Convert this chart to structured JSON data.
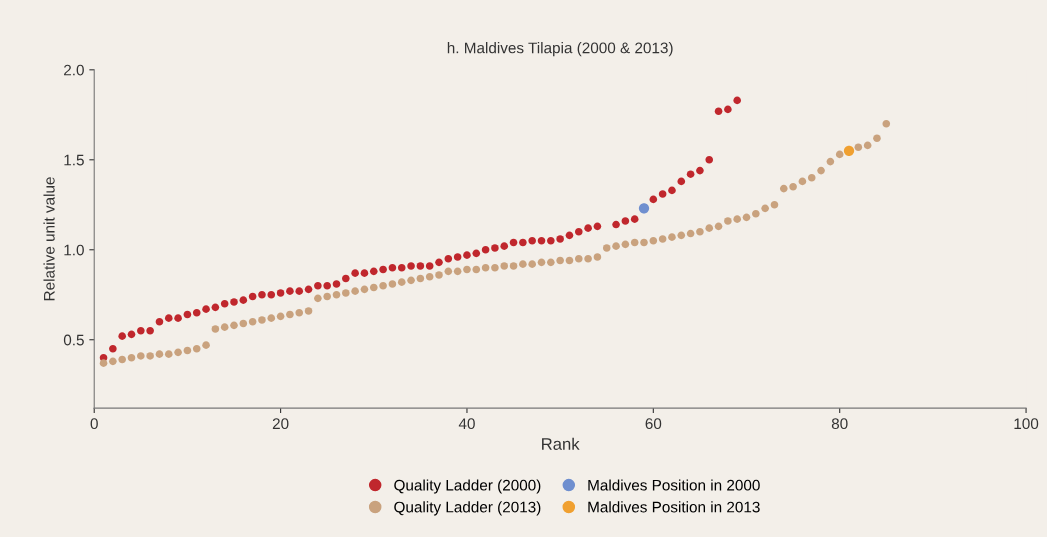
{
  "chart_data": {
    "type": "scatter",
    "title": "h. Maldives Tilapia (2000 & 2013)",
    "xlabel": "Rank",
    "ylabel": "Relative unit value",
    "xlim": [
      0,
      100
    ],
    "xticks": [
      0,
      20,
      40,
      60,
      80,
      100
    ],
    "ylim": [
      0.12,
      2.0
    ],
    "yticks": [
      {
        "value": 0.5,
        "label": "0.5"
      },
      {
        "value": 1.0,
        "label": "1.0"
      },
      {
        "value": 1.5,
        "label": "1.5"
      },
      {
        "value": 2.0,
        "label": "2.0"
      }
    ],
    "legend": "bottom",
    "marker": "circle",
    "grid": false,
    "series": [
      {
        "name": "Quality Ladder (2000)",
        "color": "#c0272d",
        "x": [
          1,
          2,
          3,
          4,
          5,
          6,
          7,
          8,
          9,
          10,
          11,
          12,
          13,
          14,
          15,
          16,
          17,
          18,
          19,
          20,
          21,
          22,
          23,
          24,
          25,
          26,
          27,
          28,
          29,
          30,
          31,
          32,
          33,
          34,
          35,
          36,
          37,
          38,
          39,
          40,
          41,
          42,
          43,
          44,
          45,
          46,
          47,
          48,
          49,
          50,
          51,
          52,
          53,
          54,
          56,
          57,
          58,
          60,
          61,
          62,
          63,
          64,
          65,
          66,
          67,
          68,
          69
        ],
        "values": [
          0.4,
          0.45,
          0.52,
          0.53,
          0.55,
          0.55,
          0.6,
          0.62,
          0.62,
          0.64,
          0.65,
          0.67,
          0.68,
          0.7,
          0.71,
          0.72,
          0.74,
          0.75,
          0.75,
          0.76,
          0.77,
          0.77,
          0.78,
          0.8,
          0.8,
          0.81,
          0.84,
          0.87,
          0.87,
          0.88,
          0.89,
          0.9,
          0.9,
          0.91,
          0.91,
          0.91,
          0.93,
          0.95,
          0.96,
          0.97,
          0.98,
          1.0,
          1.01,
          1.02,
          1.04,
          1.04,
          1.05,
          1.05,
          1.05,
          1.06,
          1.08,
          1.1,
          1.12,
          1.13,
          1.14,
          1.16,
          1.17,
          1.28,
          1.31,
          1.33,
          1.38,
          1.42,
          1.44,
          1.5,
          1.77,
          1.78,
          1.83
        ]
      },
      {
        "name": "Maldives Position in 2000",
        "color": "#6f8fcf",
        "x": [
          59
        ],
        "values": [
          1.23
        ]
      },
      {
        "name": "Quality Ladder (2013)",
        "color": "#c9a27e",
        "x": [
          1,
          2,
          3,
          4,
          5,
          6,
          7,
          8,
          9,
          10,
          11,
          12,
          13,
          14,
          15,
          16,
          17,
          18,
          19,
          20,
          21,
          22,
          23,
          24,
          25,
          26,
          27,
          28,
          29,
          30,
          31,
          32,
          33,
          34,
          35,
          36,
          37,
          38,
          39,
          40,
          41,
          42,
          43,
          44,
          45,
          46,
          47,
          48,
          49,
          50,
          51,
          52,
          53,
          54,
          55,
          56,
          57,
          58,
          59,
          60,
          61,
          62,
          63,
          64,
          65,
          66,
          67,
          68,
          69,
          70,
          71,
          72,
          73,
          74,
          75,
          76,
          77,
          78,
          79,
          80,
          82,
          83,
          84,
          85
        ],
        "values": [
          0.37,
          0.38,
          0.39,
          0.4,
          0.41,
          0.41,
          0.42,
          0.42,
          0.43,
          0.44,
          0.45,
          0.47,
          0.56,
          0.57,
          0.58,
          0.59,
          0.6,
          0.61,
          0.62,
          0.63,
          0.64,
          0.65,
          0.66,
          0.73,
          0.74,
          0.75,
          0.76,
          0.77,
          0.78,
          0.79,
          0.8,
          0.81,
          0.82,
          0.83,
          0.84,
          0.85,
          0.86,
          0.88,
          0.88,
          0.89,
          0.89,
          0.9,
          0.9,
          0.91,
          0.91,
          0.92,
          0.92,
          0.93,
          0.93,
          0.94,
          0.94,
          0.95,
          0.95,
          0.96,
          1.01,
          1.02,
          1.03,
          1.04,
          1.04,
          1.05,
          1.06,
          1.07,
          1.08,
          1.09,
          1.1,
          1.12,
          1.13,
          1.16,
          1.17,
          1.18,
          1.2,
          1.23,
          1.25,
          1.34,
          1.35,
          1.38,
          1.4,
          1.44,
          1.49,
          1.53,
          1.57,
          1.58,
          1.62,
          1.7
        ]
      },
      {
        "name": "Maldives Position in 2013",
        "color": "#f0a030",
        "x": [
          81
        ],
        "values": [
          1.55
        ]
      }
    ]
  }
}
